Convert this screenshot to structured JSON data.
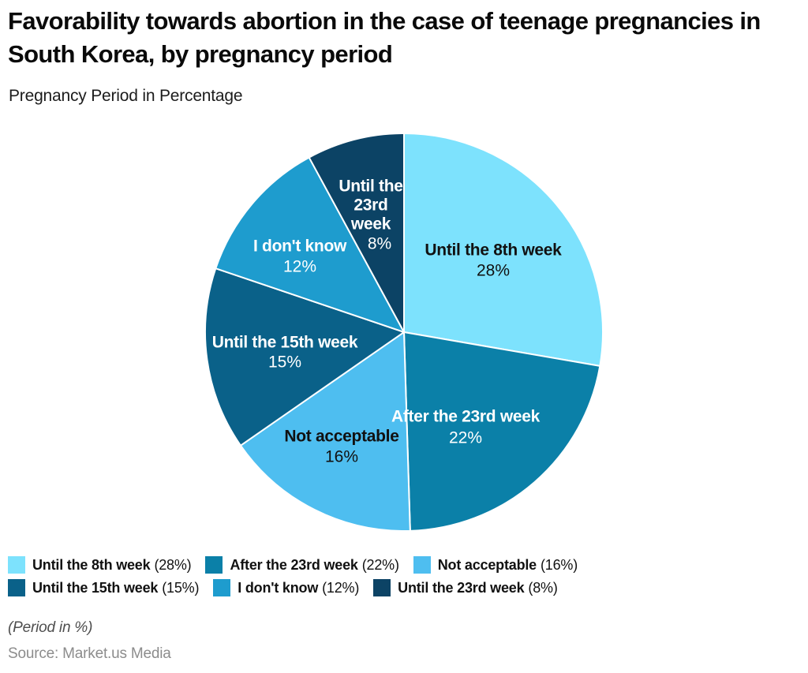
{
  "chart_data": {
    "type": "pie",
    "title": "Favorability towards abortion in the case of teenage pregnancies in South Korea, by pregnancy period",
    "subtitle": "Pregnancy Period in Percentage",
    "unit": "%",
    "start_angle_deg": 0,
    "direction": "clockwise",
    "legend_position": "bottom",
    "legend_columns": 3,
    "slices": [
      {
        "label": "Until the 8th week",
        "value": 28,
        "color": "#7DE2FD",
        "text_color": "#111111",
        "label_lines": [
          "Until the 8th week"
        ]
      },
      {
        "label": "After the 23rd week",
        "value": 22,
        "color": "#0B80A8",
        "text_color": "#FFFFFF",
        "label_lines": [
          "After the 23rd week"
        ]
      },
      {
        "label": "Not acceptable",
        "value": 16,
        "color": "#4EBEF0",
        "text_color": "#111111",
        "label_lines": [
          "Not acceptable"
        ]
      },
      {
        "label": "Until the 15th week",
        "value": 15,
        "color": "#0A6189",
        "text_color": "#FFFFFF",
        "label_lines": [
          "Until the 15th week"
        ]
      },
      {
        "label": "I don't know",
        "value": 12,
        "color": "#1E9CCE",
        "text_color": "#FFFFFF",
        "label_lines": [
          "I don't know"
        ]
      },
      {
        "label": "Until the 23rd week",
        "value": 8,
        "color": "#0C4365",
        "text_color": "#FFFFFF",
        "label_lines": [
          "Until the",
          "23rd",
          "week"
        ]
      }
    ]
  },
  "footer": {
    "note": "(Period in %)",
    "source": "Source: Market.us Media"
  }
}
